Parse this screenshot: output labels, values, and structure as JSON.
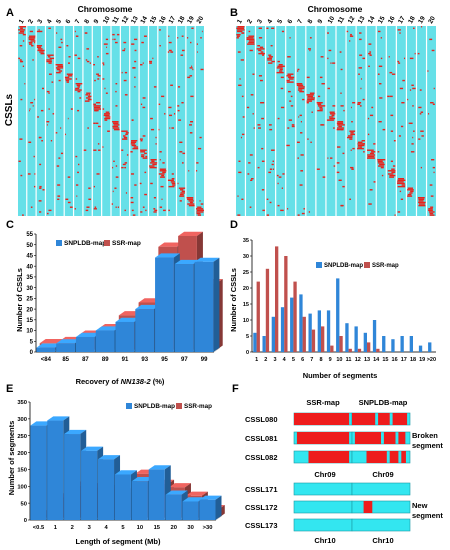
{
  "chart_data": [
    {
      "panel": "A",
      "type": "heatmap",
      "title": "Chromosome",
      "ylabel": "CSSLs",
      "x_tick_labels": [
        "1",
        "2",
        "3",
        "4",
        "5",
        "6",
        "7",
        "8",
        "9",
        "10",
        "11",
        "12",
        "13",
        "14",
        "15",
        "16",
        "17",
        "18",
        "19",
        "20"
      ],
      "background_color": "#66e0e8",
      "segment_color": "#e8231c",
      "grid": false
    },
    {
      "panel": "B",
      "type": "heatmap",
      "title": "Chromosome",
      "x_tick_labels": [
        "1",
        "2",
        "3",
        "4",
        "5",
        "6",
        "7",
        "8",
        "9",
        "10",
        "11",
        "12",
        "13",
        "14",
        "15",
        "16",
        "17",
        "18",
        "19",
        "20"
      ],
      "background_color": "#66e0e8",
      "segment_color": "#e8231c",
      "grid": false
    },
    {
      "panel": "C",
      "type": "bar",
      "categories": [
        "<84",
        "85",
        "87",
        "89",
        "91",
        "93",
        "95",
        "97",
        "99"
      ],
      "series": [
        {
          "name": "SNPLDB-map",
          "color": "#2f86d8",
          "values": [
            2,
            4,
            7,
            10,
            14,
            20,
            44,
            41,
            42
          ]
        },
        {
          "name": "SSR-map",
          "color": "#c0504d",
          "values": [
            3,
            4,
            7,
            10,
            16,
            22,
            48,
            53,
            31
          ]
        }
      ],
      "xlabel": "Recovery of ",
      "xlabel_italic": "NN138-2",
      "xlabel_suffix": " (%)",
      "ylabel": "Number of CSSLs",
      "ylim": [
        0,
        55
      ],
      "yticks": [
        "0",
        "5",
        "10",
        "15",
        "20",
        "25",
        "30",
        "35",
        "40",
        "45",
        "50",
        "55"
      ],
      "legend_position": "top-left"
    },
    {
      "panel": "D",
      "type": "bar",
      "categories": [
        "1",
        "2",
        "3",
        "4",
        "5",
        "6",
        "7",
        "8",
        "9",
        "10",
        "11",
        "12",
        "13",
        "14",
        "15",
        "16",
        "17",
        "18",
        "19",
        ">20"
      ],
      "series": [
        {
          "name": "SNPLDB-map",
          "color": "#2f86d8",
          "values": [
            6,
            5,
            11,
            14,
            17,
            18,
            12,
            13,
            13,
            23,
            9,
            8,
            6,
            10,
            5,
            4,
            5,
            5,
            2,
            3
          ]
        },
        {
          "name": "SSR-map",
          "color": "#c0504d",
          "values": [
            22,
            26,
            33,
            30,
            22,
            11,
            7,
            8,
            2,
            5,
            1,
            1,
            3,
            1,
            0,
            0,
            0,
            0,
            0,
            0
          ]
        }
      ],
      "xlabel": "Number of segments",
      "ylabel": "Number of CSSLs",
      "ylim": [
        0,
        35
      ],
      "yticks": [
        "0",
        "5",
        "10",
        "15",
        "20",
        "25",
        "30",
        "35"
      ],
      "legend_position": "top-right"
    },
    {
      "panel": "E",
      "type": "bar",
      "categories": [
        "<0.5",
        "1",
        "2",
        "3",
        "4",
        "5",
        "10",
        "15",
        "20",
        "30",
        ">30"
      ],
      "series": [
        {
          "name": "SNPLDB-map",
          "color": "#2f86d8",
          "values": [
            280,
            295,
            255,
            205,
            180,
            135,
            115,
            150,
            75,
            55,
            60
          ]
        },
        {
          "name": "SSR-map",
          "color": "#c0504d",
          "values": [
            10,
            60,
            95,
            90,
            85,
            75,
            130,
            100,
            90,
            65,
            25
          ]
        }
      ],
      "xlabel": "Length of segment (Mb)",
      "ylabel": "Number of segments",
      "ylim": [
        0,
        350
      ],
      "yticks": [
        "0",
        "50",
        "100",
        "150",
        "200",
        "250",
        "300",
        "350"
      ],
      "legend_position": "top-right"
    }
  ],
  "panels": {
    "a": "A",
    "b": "B",
    "c": "C",
    "d": "D",
    "e": "E",
    "f": "F"
  },
  "panel_f": {
    "ssr_header": "SSR-map",
    "snp_header": "SNPLDB-map",
    "group1": {
      "rows": [
        "CSSL080",
        "CSSL081",
        "CSSL082"
      ],
      "chr": "Chr09",
      "note1": "Broken",
      "note2": "segment"
    },
    "group2": {
      "rows": [
        "CSSL171",
        "CSSL172",
        "CSSL173"
      ],
      "chr": "Chr10",
      "note1": "New",
      "note2": "segment"
    },
    "bg_color": "#33e6f0",
    "seg_color": "#ee1c1c"
  }
}
